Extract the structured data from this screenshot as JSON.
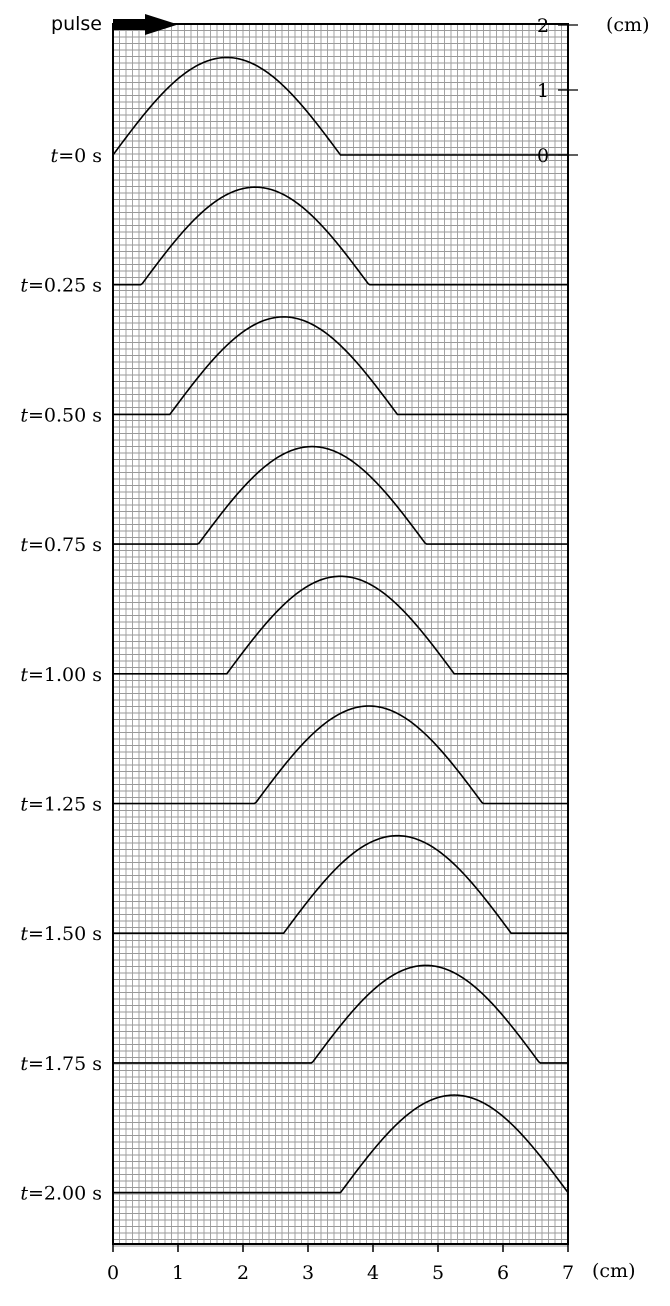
{
  "header": {
    "pulse_label": "pulse",
    "y_unit": "(cm)",
    "x_unit": "(cm)"
  },
  "y_scale": {
    "ticks": [
      0,
      1,
      2
    ],
    "labels": [
      "0",
      "1",
      "2"
    ]
  },
  "x_axis": {
    "ticks": [
      0,
      1,
      2,
      3,
      4,
      5,
      6,
      7
    ],
    "labels": [
      "0",
      "1",
      "2",
      "3",
      "4",
      "5",
      "6",
      "7"
    ]
  },
  "pulse": {
    "shape": "half-sine",
    "width_cm": 3.5,
    "amplitude_cm": 1.5,
    "speed_cm_per_s": 1.75
  },
  "snapshots": [
    {
      "t_var": "t",
      "t_value": "=0 s",
      "start_cm": 0.0
    },
    {
      "t_var": "t",
      "t_value": "=0.25 s",
      "start_cm": 0.4375
    },
    {
      "t_var": "t",
      "t_value": "=0.50 s",
      "start_cm": 0.875
    },
    {
      "t_var": "t",
      "t_value": "=0.75 s",
      "start_cm": 1.3125
    },
    {
      "t_var": "t",
      "t_value": "=1.00 s",
      "start_cm": 1.75
    },
    {
      "t_var": "t",
      "t_value": "=1.25 s",
      "start_cm": 2.1875
    },
    {
      "t_var": "t",
      "t_value": "=1.50 s",
      "start_cm": 2.625
    },
    {
      "t_var": "t",
      "t_value": "=1.75 s",
      "start_cm": 3.0625
    },
    {
      "t_var": "t",
      "t_value": "=2.00 s",
      "start_cm": 3.5
    }
  ]
}
